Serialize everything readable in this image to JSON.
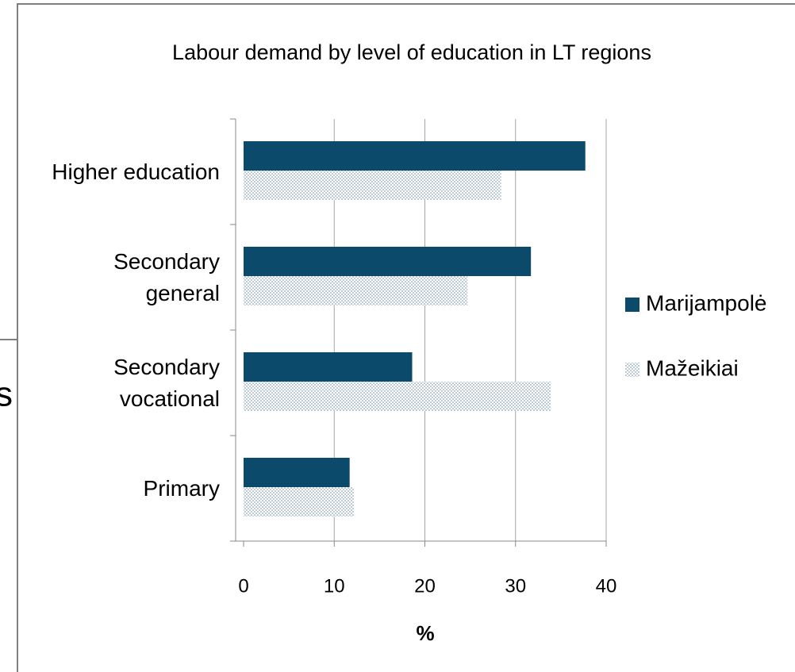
{
  "fragments": {
    "left": "s"
  },
  "chart_data": {
    "type": "bar",
    "orientation": "horizontal",
    "title": "Labour demand by level of education in LT regions",
    "xlabel": "%",
    "categories": [
      "Higher education",
      "Secondary\ngeneral",
      "Secondary\nvocational",
      "Primary"
    ],
    "series": [
      {
        "name": "Marijampolė",
        "color": "#0b4a6b",
        "values": [
          37.7,
          31.7,
          18.6,
          11.7
        ]
      },
      {
        "name": "Mažeikiai",
        "color": "#6f8fa6",
        "pattern": "dotted",
        "values": [
          28.4,
          24.7,
          33.9,
          12.2
        ]
      }
    ],
    "xlim": [
      0,
      40
    ],
    "xticks": [
      0,
      10,
      20,
      30,
      40
    ],
    "grid": true,
    "legend": "right"
  }
}
